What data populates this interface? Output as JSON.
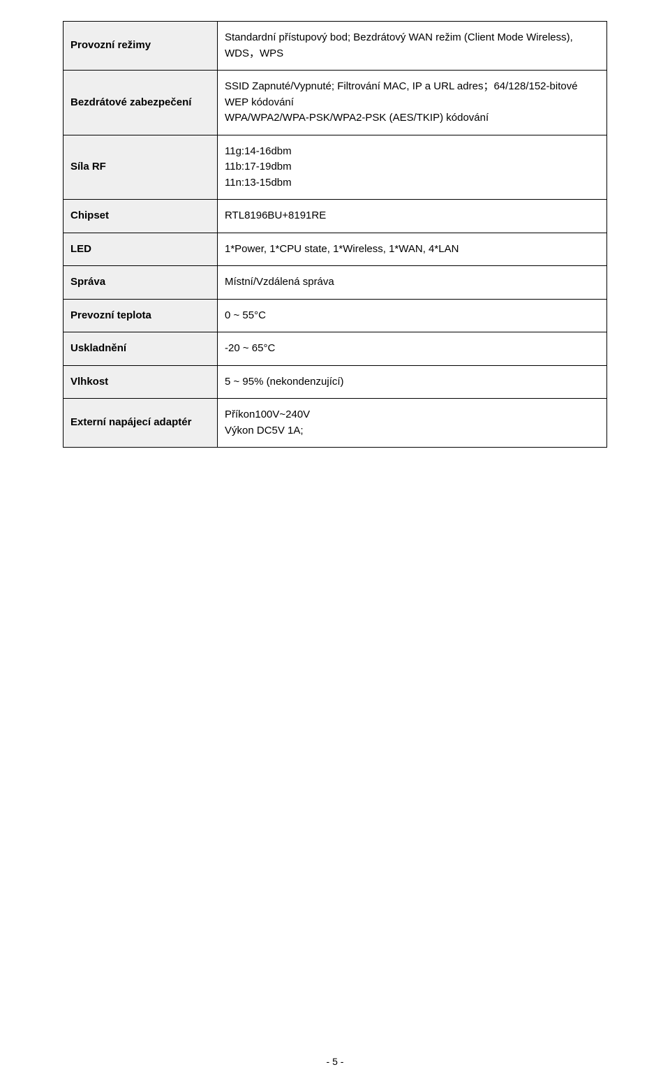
{
  "table": {
    "label_bg": "#efefef",
    "border_color": "#000000",
    "rows": [
      {
        "label": "Provozní režimy",
        "value_lines": [
          "Standardní přístupový bod; Bezdrátový WAN režim (Client Mode Wireless), WDS，WPS"
        ]
      },
      {
        "label": "Bezdrátové zabezpečení",
        "value_lines": [
          "SSID Zapnuté/Vypnuté; Filtrování MAC, IP a URL adres；64/128/152-bitové WEP kódování",
          "WPA/WPA2/WPA-PSK/WPA2-PSK (AES/TKIP) kódování"
        ]
      },
      {
        "label": "Síla RF",
        "value_lines": [
          "11g:14-16dbm",
          "11b:17-19dbm",
          "11n:13-15dbm"
        ]
      },
      {
        "label": "Chipset",
        "value_lines": [
          "RTL8196BU+8191RE"
        ]
      },
      {
        "label": "LED",
        "value_lines": [
          "1*Power, 1*CPU state, 1*Wireless, 1*WAN, 4*LAN"
        ]
      },
      {
        "label": "Správa",
        "value_lines": [
          "Místní/Vzdálená správa"
        ]
      },
      {
        "label": "Prevozní teplota",
        "value_lines": [
          "0 ~ 55°C"
        ]
      },
      {
        "label": "Uskladnění",
        "value_lines": [
          "-20 ~ 65°C"
        ]
      },
      {
        "label": "Vlhkost",
        "value_lines": [
          "5 ~ 95% (nekondenzující)"
        ]
      },
      {
        "label": "Externí napájecí adaptér",
        "value_lines": [
          "Příkon100V~240V",
          "Výkon DC5V 1A;"
        ]
      }
    ]
  },
  "footer": "- 5 -"
}
